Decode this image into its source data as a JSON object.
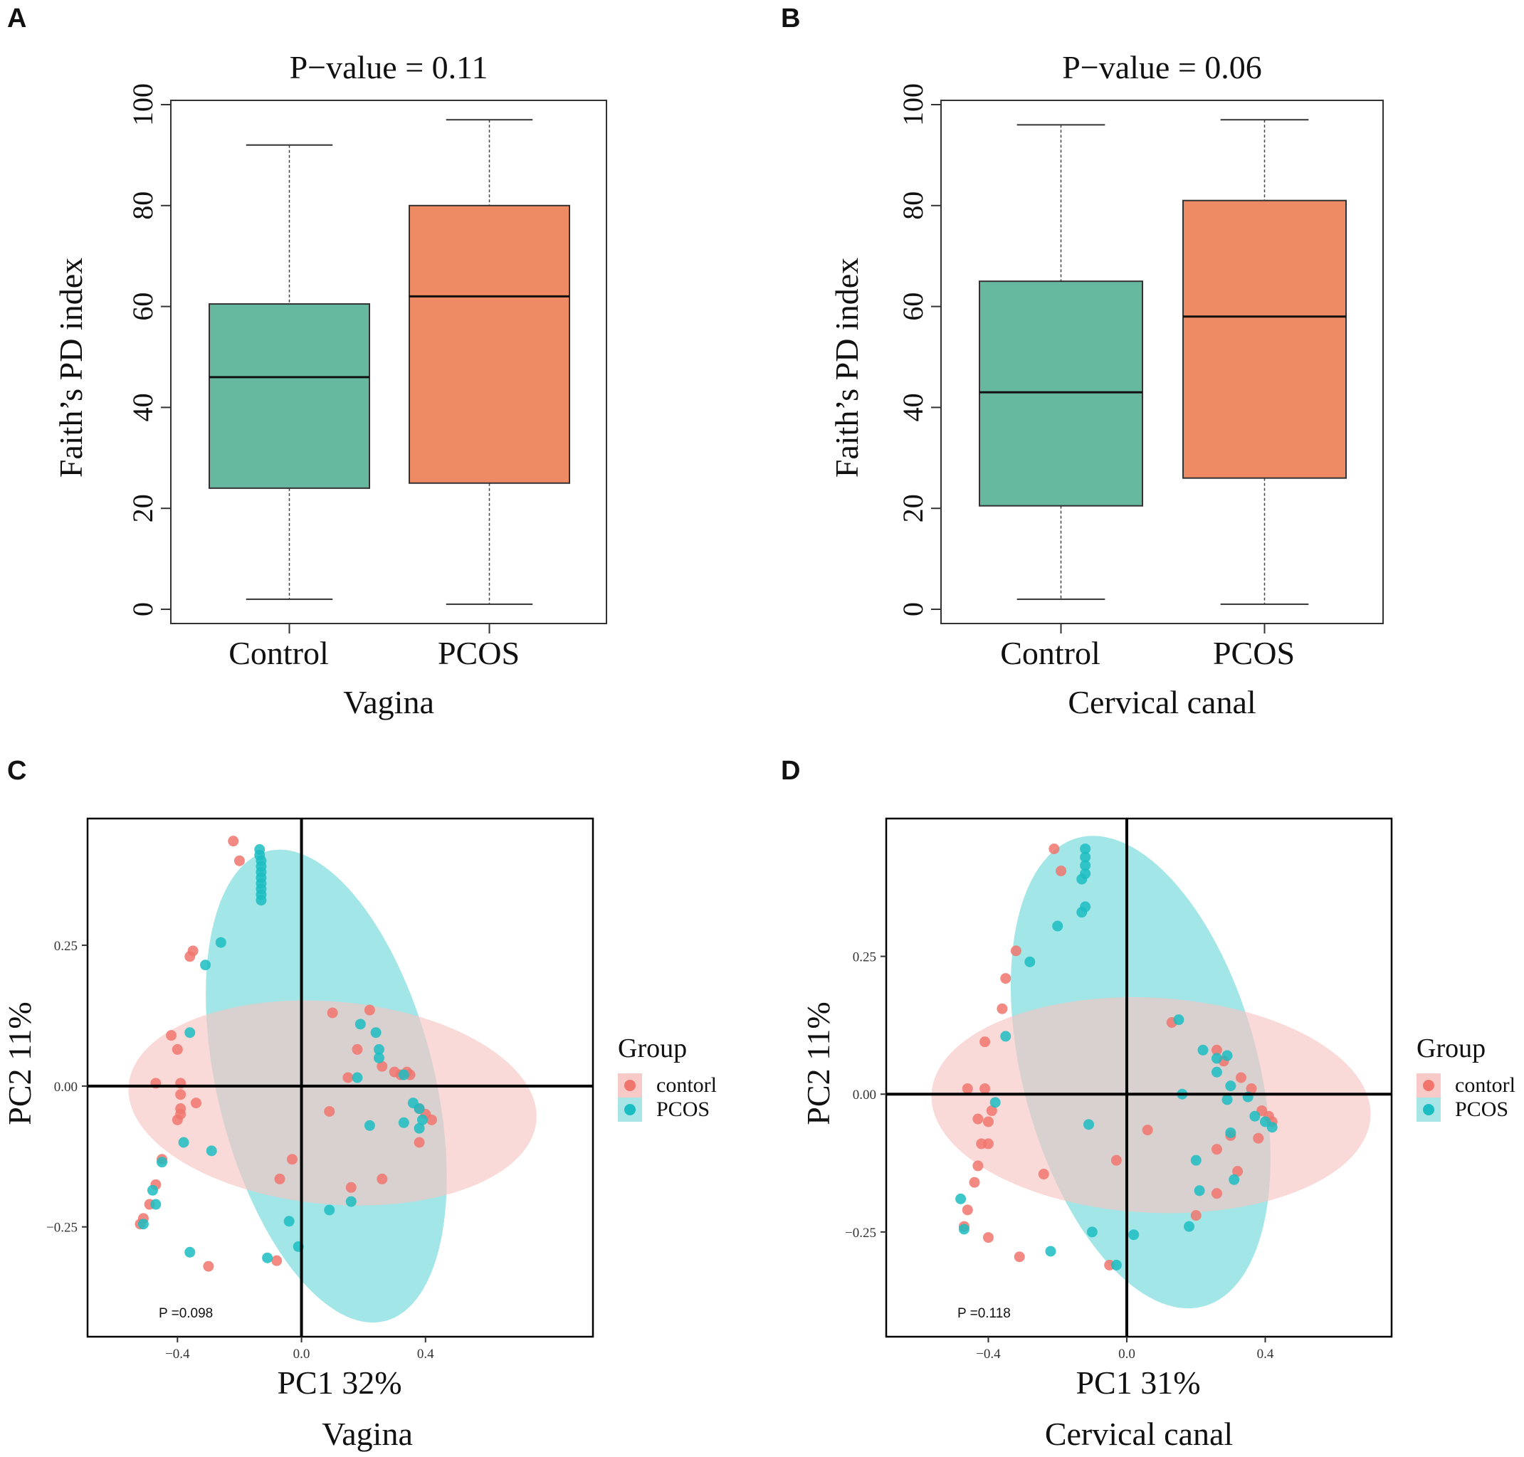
{
  "chart_data": [
    {
      "panel": "A",
      "type": "box",
      "title": "P−value = 0.11",
      "ylabel": "Faith’s PD index",
      "xlabel": "Vagina",
      "ylim": [
        0,
        100
      ],
      "yticks": [
        "0",
        "20",
        "40",
        "60",
        "80",
        "100"
      ],
      "categories": [
        "Control",
        "PCOS"
      ],
      "boxes": [
        {
          "name": "Control",
          "min": 2,
          "q1": 24,
          "median": 46,
          "q3": 60.5,
          "max": 92,
          "color": "#66b99f"
        },
        {
          "name": "PCOS",
          "min": 1,
          "q1": 25,
          "median": 62,
          "q3": 80,
          "max": 97,
          "color": "#ee8a64"
        }
      ]
    },
    {
      "panel": "B",
      "type": "box",
      "title": "P−value = 0.06",
      "ylabel": "Faith’s PD index",
      "xlabel": "Cervical canal",
      "ylim": [
        0,
        100
      ],
      "yticks": [
        "0",
        "20",
        "40",
        "60",
        "80",
        "100"
      ],
      "categories": [
        "Control",
        "PCOS"
      ],
      "boxes": [
        {
          "name": "Control",
          "min": 2,
          "q1": 20.5,
          "median": 43,
          "q3": 65,
          "max": 96,
          "color": "#66b99f"
        },
        {
          "name": "PCOS",
          "min": 1,
          "q1": 26,
          "median": 58,
          "q3": 81,
          "max": 97,
          "color": "#ee8a64"
        }
      ]
    },
    {
      "panel": "C",
      "type": "scatter",
      "xlabel": "PC1 32%",
      "ylabel": "PC2 11%",
      "subtitle": "Vagina",
      "annotation": "P =0.098",
      "xlim": [
        -0.69,
        0.94
      ],
      "ylim": [
        -0.445,
        0.475
      ],
      "xticks": [
        -0.4,
        0.0,
        0.4
      ],
      "xtick_labels": [
        "−0.4",
        "0.0",
        "0.4"
      ],
      "yticks": [
        -0.25,
        0.0,
        0.25
      ],
      "ytick_labels": [
        "−0.25",
        "0.00",
        "0.25"
      ],
      "legend_title": "Group",
      "ellipses": [
        {
          "group": "contorl",
          "cx": 0.1,
          "cy": -0.03,
          "rx": 0.66,
          "ry": 0.18,
          "angle": 5
        },
        {
          "group": "PCOS",
          "cx": 0.08,
          "cy": 0.0,
          "rx": 0.35,
          "ry": 0.43,
          "angle": -14
        }
      ],
      "series": [
        {
          "name": "contorl",
          "color": "#f0766d",
          "points": [
            [
              -0.22,
              0.435
            ],
            [
              -0.2,
              0.4
            ],
            [
              -0.35,
              0.24
            ],
            [
              -0.36,
              0.23
            ],
            [
              -0.42,
              0.09
            ],
            [
              -0.4,
              0.065
            ],
            [
              -0.47,
              0.005
            ],
            [
              -0.39,
              0.005
            ],
            [
              -0.39,
              -0.015
            ],
            [
              -0.39,
              -0.04
            ],
            [
              -0.39,
              -0.05
            ],
            [
              -0.4,
              -0.06
            ],
            [
              -0.34,
              -0.03
            ],
            [
              -0.45,
              -0.13
            ],
            [
              -0.47,
              -0.175
            ],
            [
              -0.49,
              -0.21
            ],
            [
              -0.51,
              -0.235
            ],
            [
              -0.52,
              -0.245
            ],
            [
              -0.3,
              -0.32
            ],
            [
              -0.08,
              -0.31
            ],
            [
              -0.07,
              -0.165
            ],
            [
              -0.03,
              -0.13
            ],
            [
              0.1,
              0.13
            ],
            [
              0.18,
              0.065
            ],
            [
              0.15,
              0.015
            ],
            [
              0.22,
              0.135
            ],
            [
              0.26,
              0.035
            ],
            [
              0.3,
              0.025
            ],
            [
              0.32,
              0.02
            ],
            [
              0.35,
              0.02
            ],
            [
              0.34,
              0.025
            ],
            [
              0.38,
              -0.04
            ],
            [
              0.4,
              -0.05
            ],
            [
              0.42,
              -0.06
            ],
            [
              0.38,
              -0.1
            ],
            [
              0.09,
              -0.045
            ],
            [
              0.16,
              -0.18
            ],
            [
              0.26,
              -0.165
            ]
          ]
        },
        {
          "name": "PCOS",
          "color": "#1cbdc2",
          "points": [
            [
              -0.135,
              0.42
            ],
            [
              -0.135,
              0.41
            ],
            [
              -0.13,
              0.4
            ],
            [
              -0.13,
              0.39
            ],
            [
              -0.13,
              0.38
            ],
            [
              -0.13,
              0.37
            ],
            [
              -0.13,
              0.36
            ],
            [
              -0.13,
              0.35
            ],
            [
              -0.13,
              0.34
            ],
            [
              -0.13,
              0.33
            ],
            [
              -0.26,
              0.255
            ],
            [
              -0.31,
              0.215
            ],
            [
              -0.36,
              0.095
            ],
            [
              -0.38,
              -0.1
            ],
            [
              -0.45,
              -0.135
            ],
            [
              -0.29,
              -0.115
            ],
            [
              -0.48,
              -0.185
            ],
            [
              -0.47,
              -0.21
            ],
            [
              -0.51,
              -0.245
            ],
            [
              -0.36,
              -0.295
            ],
            [
              -0.11,
              -0.305
            ],
            [
              -0.04,
              -0.24
            ],
            [
              -0.01,
              -0.285
            ],
            [
              0.09,
              -0.22
            ],
            [
              0.16,
              -0.205
            ],
            [
              0.18,
              0.015
            ],
            [
              0.19,
              0.11
            ],
            [
              0.24,
              0.095
            ],
            [
              0.25,
              0.065
            ],
            [
              0.25,
              0.05
            ],
            [
              0.33,
              0.02
            ],
            [
              0.33,
              -0.065
            ],
            [
              0.36,
              -0.03
            ],
            [
              0.38,
              -0.04
            ],
            [
              0.38,
              -0.075
            ],
            [
              0.39,
              -0.06
            ],
            [
              0.22,
              -0.07
            ]
          ]
        }
      ]
    },
    {
      "panel": "D",
      "type": "scatter",
      "xlabel": "PC1 31%",
      "ylabel": "PC2 11%",
      "subtitle": "Cervical canal",
      "annotation": "P =0.118",
      "xlim": [
        -0.695,
        0.765
      ],
      "ylim": [
        -0.44,
        0.5
      ],
      "xticks": [
        -0.4,
        0.0,
        0.4
      ],
      "xtick_labels": [
        "−0.4",
        "0.0",
        "0.4"
      ],
      "yticks": [
        -0.25,
        0.0,
        0.25
      ],
      "ytick_labels": [
        "−0.25",
        "0.00",
        "0.25"
      ],
      "legend_title": "Group",
      "ellipses": [
        {
          "group": "contorl",
          "cx": 0.07,
          "cy": -0.02,
          "rx": 0.635,
          "ry": 0.195,
          "angle": 3
        },
        {
          "group": "PCOS",
          "cx": 0.04,
          "cy": 0.04,
          "rx": 0.34,
          "ry": 0.44,
          "angle": -15
        }
      ],
      "series": [
        {
          "name": "contorl",
          "color": "#f0766d",
          "points": [
            [
              -0.21,
              0.445
            ],
            [
              -0.19,
              0.405
            ],
            [
              -0.32,
              0.26
            ],
            [
              -0.35,
              0.21
            ],
            [
              -0.36,
              0.155
            ],
            [
              -0.41,
              0.095
            ],
            [
              -0.46,
              0.01
            ],
            [
              -0.41,
              0.01
            ],
            [
              -0.39,
              -0.03
            ],
            [
              -0.4,
              -0.05
            ],
            [
              -0.43,
              -0.045
            ],
            [
              -0.4,
              -0.09
            ],
            [
              -0.42,
              -0.09
            ],
            [
              -0.43,
              -0.13
            ],
            [
              -0.44,
              -0.16
            ],
            [
              -0.46,
              -0.21
            ],
            [
              -0.47,
              -0.24
            ],
            [
              -0.4,
              -0.26
            ],
            [
              -0.31,
              -0.295
            ],
            [
              -0.05,
              -0.31
            ],
            [
              -0.03,
              -0.12
            ],
            [
              -0.24,
              -0.145
            ],
            [
              0.06,
              -0.065
            ],
            [
              0.13,
              0.13
            ],
            [
              0.26,
              0.08
            ],
            [
              0.28,
              0.06
            ],
            [
              0.33,
              0.03
            ],
            [
              0.36,
              0.01
            ],
            [
              0.39,
              -0.03
            ],
            [
              0.41,
              -0.04
            ],
            [
              0.42,
              -0.05
            ],
            [
              0.38,
              -0.08
            ],
            [
              0.3,
              -0.075
            ],
            [
              0.26,
              -0.1
            ],
            [
              0.32,
              -0.14
            ],
            [
              0.26,
              -0.18
            ],
            [
              0.2,
              -0.22
            ]
          ]
        },
        {
          "name": "PCOS",
          "color": "#1cbdc2",
          "points": [
            [
              -0.12,
              0.445
            ],
            [
              -0.12,
              0.43
            ],
            [
              -0.12,
              0.415
            ],
            [
              -0.12,
              0.4
            ],
            [
              -0.13,
              0.39
            ],
            [
              -0.12,
              0.34
            ],
            [
              -0.13,
              0.33
            ],
            [
              -0.2,
              0.305
            ],
            [
              -0.28,
              0.24
            ],
            [
              -0.35,
              0.105
            ],
            [
              -0.38,
              -0.015
            ],
            [
              -0.48,
              -0.19
            ],
            [
              -0.47,
              -0.245
            ],
            [
              -0.22,
              -0.285
            ],
            [
              -0.03,
              -0.31
            ],
            [
              0.02,
              -0.255
            ],
            [
              -0.1,
              -0.25
            ],
            [
              -0.11,
              -0.055
            ],
            [
              0.15,
              0.135
            ],
            [
              0.22,
              0.08
            ],
            [
              0.26,
              0.065
            ],
            [
              0.29,
              0.07
            ],
            [
              0.26,
              0.04
            ],
            [
              0.3,
              0.015
            ],
            [
              0.35,
              -0.005
            ],
            [
              0.37,
              -0.04
            ],
            [
              0.4,
              -0.05
            ],
            [
              0.42,
              -0.06
            ],
            [
              0.29,
              -0.01
            ],
            [
              0.3,
              -0.07
            ],
            [
              0.2,
              -0.12
            ],
            [
              0.18,
              -0.24
            ],
            [
              0.21,
              -0.175
            ],
            [
              0.31,
              -0.155
            ],
            [
              0.16,
              0.0
            ]
          ]
        }
      ]
    }
  ],
  "panel_labels": [
    "A",
    "B",
    "C",
    "D"
  ],
  "legend": {
    "title": "Group",
    "items": [
      {
        "label": "contorl",
        "color": "#f0766d",
        "fill": "#f7c9c7"
      },
      {
        "label": "PCOS",
        "color": "#1cbdc2",
        "fill": "#a7e5e6"
      }
    ]
  },
  "colors": {
    "control_box": "#66b99f",
    "pcos_box": "#ee8a64",
    "contorl_point": "#f0766d",
    "pcos_point": "#1cbdc2",
    "contorl_ellipse": "#f8c6c3",
    "pcos_ellipse": "#83dddf"
  }
}
